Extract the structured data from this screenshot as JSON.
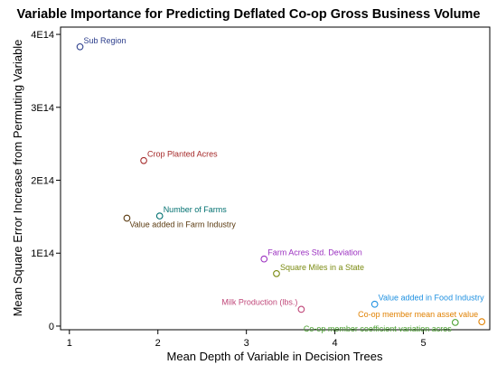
{
  "chart_data": {
    "type": "scatter",
    "title": "Variable Importance for Predicting Deflated Co-op Gross Business Volume",
    "xlabel": "Mean Depth of Variable in Decision Trees",
    "ylabel": "Mean Square Error Increase from Permuting Variable",
    "xlim": [
      0.9,
      5.75
    ],
    "ylim": [
      -5000000000000.0,
      410000000000000.0
    ],
    "x_ticks": [
      1,
      2,
      3,
      4,
      5
    ],
    "x_tick_labels": [
      "1",
      "2",
      "3",
      "4",
      "5"
    ],
    "y_ticks": [
      0,
      100000000000000.0,
      200000000000000.0,
      300000000000000.0,
      400000000000000.0
    ],
    "y_tick_labels": [
      "0",
      "1E14",
      "2E14",
      "3E14",
      "4E14"
    ],
    "grid": false,
    "legend": "none",
    "points": [
      {
        "label": "Sub Region",
        "x": 1.12,
        "y": 383000000000000.0,
        "color": "#2c3e8c",
        "label_pos": "right-above"
      },
      {
        "label": "Crop Planted Acres",
        "x": 1.84,
        "y": 227000000000000.0,
        "color": "#a52a2a",
        "label_pos": "right-above"
      },
      {
        "label": "Number of Farms",
        "x": 2.02,
        "y": 151000000000000.0,
        "color": "#007070",
        "label_pos": "right-above"
      },
      {
        "label": "Value added in Farm Industry",
        "x": 1.65,
        "y": 148000000000000.0,
        "color": "#5a3a10",
        "label_pos": "right-below"
      },
      {
        "label": "Farm Acres Std. Deviation",
        "x": 3.2,
        "y": 92000000000000.0,
        "color": "#9b30c0",
        "label_pos": "right-above"
      },
      {
        "label": "Square Miles in a State",
        "x": 3.34,
        "y": 72000000000000.0,
        "color": "#7a8a10",
        "label_pos": "right-above"
      },
      {
        "label": "Milk Production (lbs.)",
        "x": 3.62,
        "y": 23000000000000.0,
        "color": "#c0487a",
        "label_pos": "left-above"
      },
      {
        "label": "Value added in Food Industry",
        "x": 4.45,
        "y": 30000000000000.0,
        "color": "#1e90e0",
        "label_pos": "right-above"
      },
      {
        "label": "Co-op member mean asset value",
        "x": 5.66,
        "y": 6000000000000.0,
        "color": "#e08000",
        "label_pos": "left-above"
      },
      {
        "label": "Co-op member coefficient variation acres",
        "x": 5.36,
        "y": 5000000000000.0,
        "color": "#4aa030",
        "label_pos": "left-below"
      }
    ]
  }
}
